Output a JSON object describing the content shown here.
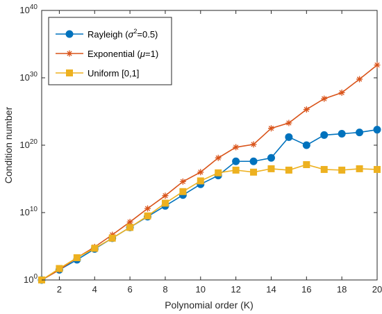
{
  "chart_data": {
    "type": "line",
    "title": "",
    "xlabel": "Polynomial order (K)",
    "ylabel": "Condition number",
    "xlim": [
      1,
      20
    ],
    "ylim": [
      1,
      1e+40
    ],
    "yscale": "log",
    "xticks": [
      2,
      4,
      6,
      8,
      10,
      12,
      14,
      16,
      18,
      20
    ],
    "xtick_labels": [
      "2",
      "4",
      "6",
      "8",
      "10",
      "12",
      "14",
      "16",
      "18",
      "20"
    ],
    "yticks": [
      {
        "value": 1,
        "base": "10",
        "exp": "0"
      },
      {
        "value": 10000000000.0,
        "base": "10",
        "exp": "10"
      },
      {
        "value": 1e+20,
        "base": "10",
        "exp": "20"
      },
      {
        "value": 1e+30,
        "base": "10",
        "exp": "30"
      },
      {
        "value": 1e+40,
        "base": "10",
        "exp": "40"
      }
    ],
    "grid": false,
    "legend_position": "top-left",
    "x": [
      1,
      2,
      3,
      4,
      5,
      6,
      7,
      8,
      9,
      10,
      11,
      12,
      13,
      14,
      15,
      16,
      17,
      18,
      19,
      20
    ],
    "series": [
      {
        "name": "Rayleigh (σ²=0.5)",
        "legend": {
          "before": "Rayleigh (",
          "sym": "σ",
          "sup": "2",
          "after": "=0.5)"
        },
        "color": "#0072BD",
        "marker": "circle",
        "values": [
          1,
          32.0,
          1000.0,
          40000.0,
          1600000.0,
          63000000.0,
          2500000000.0,
          100000000000.0,
          4000000000000.0,
          160000000000000.0,
          3200000000000000.0,
          4e+17,
          4e+17,
          1.3e+18,
          1.6e+21,
          1e+20,
          3.2e+21,
          5e+21,
          7.9e+21,
          2e+22
        ]
      },
      {
        "name": "Exponential (μ=1)",
        "legend": {
          "before": "Exponential (",
          "sym": "μ",
          "sup": "",
          "after": "=1)"
        },
        "color": "#D95319",
        "marker": "asterisk",
        "values": [
          1,
          32.0,
          2000.0,
          79000.0,
          5000000.0,
          400000000.0,
          40000000000.0,
          3200000000000.0,
          400000000000000.0,
          1e+16,
          1.3e+18,
          5e+19,
          1.3e+20,
          3.2e+22,
          2e+23,
          2e+25,
          7.9e+26,
          6.3e+27,
          6.3e+29,
          7.9e+31
        ]
      },
      {
        "name": "Uniform [0,1]",
        "legend": {
          "before": "Uniform [0,1]",
          "sym": "",
          "sup": "",
          "after": ""
        },
        "color": "#EDB120",
        "marker": "square",
        "values": [
          1,
          50.0,
          2000.0,
          50000.0,
          1600000.0,
          63000000.0,
          3200000000.0,
          250000000000.0,
          13000000000000.0,
          500000000000000.0,
          7900000000000000.0,
          2e+16,
          1e+16,
          3.2e+16,
          2e+16,
          1.3e+17,
          2.5e+16,
          2e+16,
          3.2e+16,
          2.5e+16
        ]
      }
    ]
  }
}
